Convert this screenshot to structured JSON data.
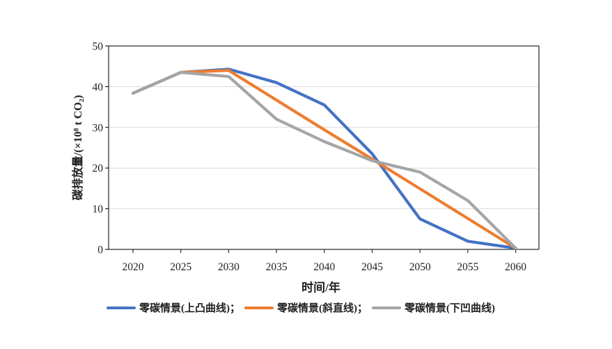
{
  "chart_data": {
    "type": "line",
    "xlabel": "时间/年",
    "ylabel": "碳排放量/(×10⁸ t CO₂)",
    "x": [
      2020,
      2025,
      2030,
      2035,
      2040,
      2045,
      2050,
      2055,
      2060
    ],
    "x_tick_labels": [
      "2020",
      "2025",
      "2030",
      "2035",
      "2040",
      "2045",
      "2050",
      "2055",
      "2060"
    ],
    "y_ticks": [
      0,
      10,
      20,
      30,
      40,
      50
    ],
    "y_tick_labels": [
      "0",
      "10",
      "20",
      "30",
      "40",
      "50"
    ],
    "ylim": [
      0,
      50
    ],
    "grid": "horizontal",
    "grid_color": "#d9d9d9",
    "axis_color": "#262626",
    "legend_position": "bottom",
    "series": [
      {
        "name": "零碳情景(上凸曲线)",
        "color": "#4472C4",
        "values": [
          38.4,
          43.5,
          44.3,
          41.0,
          35.5,
          23.5,
          7.5,
          2.0,
          0.3
        ]
      },
      {
        "name": "零碳情景(斜直线)",
        "color": "#ED7D31",
        "values": [
          38.4,
          43.5,
          44.0,
          36.7,
          29.4,
          22.2,
          14.9,
          7.6,
          0.3
        ]
      },
      {
        "name": "零碳情景(下凹曲线)",
        "color": "#A5A5A5",
        "values": [
          38.4,
          43.5,
          42.5,
          32.0,
          26.5,
          21.8,
          19.0,
          12.0,
          0.3
        ]
      }
    ],
    "legend_labels": [
      "零碳情景(上凸曲线)；",
      "零碳情景(斜直线)；",
      "零碳情景(下凹曲线)"
    ]
  }
}
